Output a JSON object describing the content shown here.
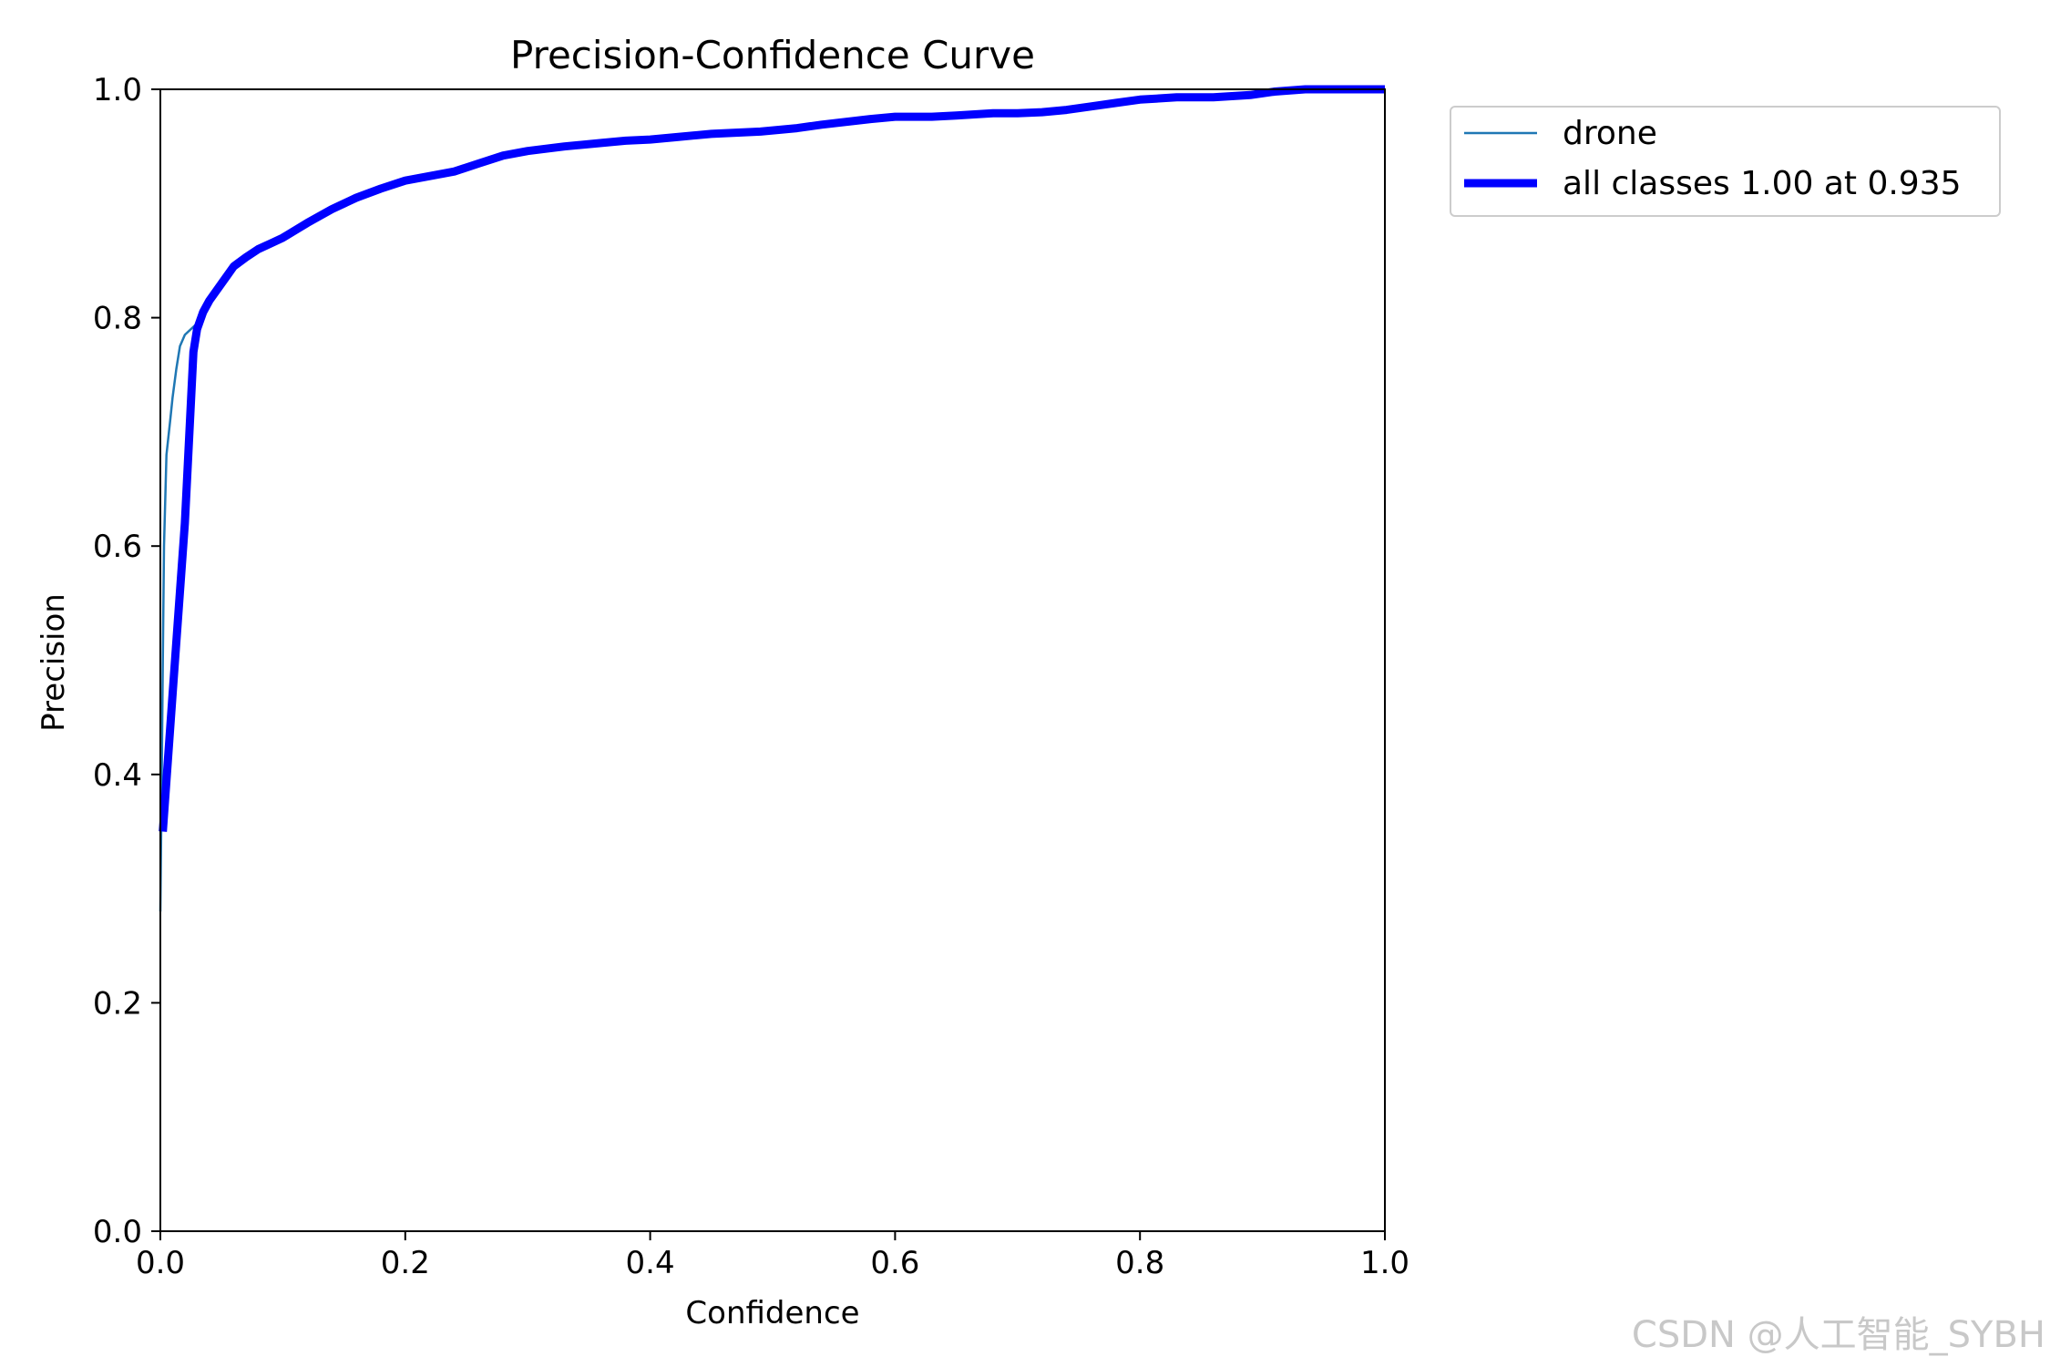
{
  "chart_data": {
    "type": "line",
    "title": "Precision-Confidence Curve",
    "xlabel": "Confidence",
    "ylabel": "Precision",
    "xlim": [
      0.0,
      1.0
    ],
    "ylim": [
      0.0,
      1.0
    ],
    "xticks": [
      "0.0",
      "0.2",
      "0.4",
      "0.6",
      "0.8",
      "1.0"
    ],
    "yticks": [
      "0.0",
      "0.2",
      "0.4",
      "0.6",
      "0.8",
      "1.0"
    ],
    "grid": false,
    "legend_position": "outside-upper-right",
    "series": [
      {
        "name": "drone",
        "color": "#1f77b4",
        "line": "thin",
        "x": [
          0.0,
          0.001,
          0.002,
          0.003,
          0.005,
          0.008,
          0.01,
          0.013,
          0.016,
          0.02,
          0.025,
          0.03,
          0.035,
          0.04,
          0.05,
          0.06,
          0.07,
          0.08,
          0.09,
          0.1,
          0.12,
          0.14,
          0.16,
          0.18,
          0.2,
          0.22,
          0.24,
          0.26,
          0.28,
          0.3,
          0.33,
          0.36,
          0.38,
          0.4,
          0.42,
          0.45,
          0.49,
          0.52,
          0.54,
          0.58,
          0.6,
          0.63,
          0.65,
          0.68,
          0.7,
          0.72,
          0.74,
          0.76,
          0.78,
          0.8,
          0.83,
          0.86,
          0.89,
          0.91,
          0.935,
          0.95,
          0.98,
          1.0
        ],
        "y": [
          0.28,
          0.38,
          0.5,
          0.6,
          0.68,
          0.71,
          0.73,
          0.755,
          0.775,
          0.785,
          0.79,
          0.795,
          0.805,
          0.815,
          0.83,
          0.845,
          0.853,
          0.86,
          0.865,
          0.87,
          0.883,
          0.895,
          0.905,
          0.913,
          0.92,
          0.924,
          0.928,
          0.935,
          0.942,
          0.946,
          0.95,
          0.953,
          0.955,
          0.956,
          0.958,
          0.961,
          0.963,
          0.966,
          0.969,
          0.974,
          0.976,
          0.976,
          0.977,
          0.979,
          0.979,
          0.98,
          0.982,
          0.985,
          0.988,
          0.991,
          0.993,
          0.993,
          0.995,
          0.998,
          1.0,
          1.0,
          1.0,
          1.0
        ]
      },
      {
        "name": "all classes 1.00 at 0.935",
        "color": "#0000ff",
        "line": "thick",
        "x": [
          0.002,
          0.01,
          0.02,
          0.027,
          0.03,
          0.035,
          0.04,
          0.05,
          0.06,
          0.07,
          0.08,
          0.09,
          0.1,
          0.12,
          0.14,
          0.16,
          0.18,
          0.2,
          0.22,
          0.24,
          0.26,
          0.28,
          0.3,
          0.33,
          0.36,
          0.38,
          0.4,
          0.42,
          0.45,
          0.49,
          0.52,
          0.54,
          0.58,
          0.6,
          0.63,
          0.65,
          0.68,
          0.7,
          0.72,
          0.74,
          0.76,
          0.78,
          0.8,
          0.83,
          0.86,
          0.89,
          0.91,
          0.935,
          0.95,
          0.98,
          1.0
        ],
        "y": [
          0.35,
          0.47,
          0.62,
          0.77,
          0.79,
          0.805,
          0.815,
          0.83,
          0.845,
          0.853,
          0.86,
          0.865,
          0.87,
          0.883,
          0.895,
          0.905,
          0.913,
          0.92,
          0.924,
          0.928,
          0.935,
          0.942,
          0.946,
          0.95,
          0.953,
          0.955,
          0.956,
          0.958,
          0.961,
          0.963,
          0.966,
          0.969,
          0.974,
          0.976,
          0.976,
          0.977,
          0.979,
          0.979,
          0.98,
          0.982,
          0.985,
          0.988,
          0.991,
          0.993,
          0.993,
          0.995,
          0.998,
          1.0,
          1.0,
          1.0,
          1.0
        ]
      }
    ]
  },
  "watermark": "CSDN @人工智能_SYBH"
}
